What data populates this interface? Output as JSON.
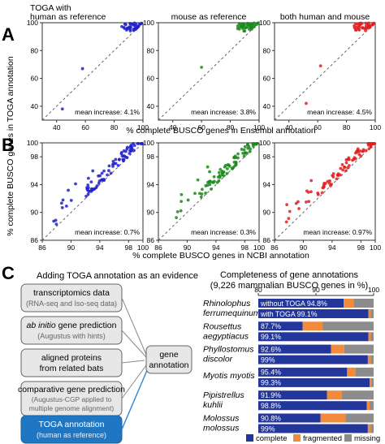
{
  "colors": {
    "blue": "#2020cc",
    "green": "#1a8a1a",
    "red": "#e02020",
    "bar_complete": "#23379b",
    "bar_fragmented": "#f28a3c",
    "bar_missing": "#8c8c8c",
    "toga_box": "#1f77c4",
    "arrow": "#3b8ad9"
  },
  "panel_a": {
    "letter": "A",
    "xlabel": "% complete BUSCO genes in Ensembl annotation",
    "plots": [
      {
        "title_lines": [
          "TOGA with",
          "human as reference"
        ],
        "mean": "mean increase: 4.1%",
        "color": "blue"
      },
      {
        "title_lines": [
          "mouse as reference"
        ],
        "mean": "mean increase: 3.8%",
        "color": "green"
      },
      {
        "title_lines": [
          "both human and mouse"
        ],
        "mean": "mean increase: 4.5%",
        "color": "red"
      }
    ],
    "ticks_x": [
      "40",
      "60",
      "80",
      "100"
    ],
    "ticks_y": [
      "40",
      "60",
      "80",
      "100"
    ]
  },
  "panel_b": {
    "letter": "B",
    "xlabel": "% complete BUSCO genes in NCBI annotation",
    "plots": [
      {
        "mean": "mean increase: 0.7%",
        "color": "blue"
      },
      {
        "mean": "mean increase: 0.3%",
        "color": "green"
      },
      {
        "mean": "mean increase: 0.97%",
        "color": "red"
      }
    ],
    "ticks_x": [
      "86",
      "90",
      "94",
      "98",
      "100"
    ],
    "ticks_y": [
      "86",
      "90",
      "94",
      "98",
      "100"
    ]
  },
  "ylabel_shared": "% complete BUSCO genes in TOGA annotation",
  "panel_c": {
    "letter": "C",
    "left_title": "Adding TOGA annotation as an evidence",
    "boxes": [
      {
        "title": "transcriptomics data",
        "sub": "(RNA-seq and Iso-seq data)"
      },
      {
        "title_italic": "ab initio",
        "title": " gene prediction",
        "sub": "(Augustus with hints)"
      },
      {
        "title": "aligned proteins",
        "title2": "from related bats"
      },
      {
        "title": "comparative gene prediction",
        "sub": "(Augustus-CGP applied to",
        "sub2": "multiple genome alignment)"
      },
      {
        "title": "TOGA annotation",
        "sub": "(human as reference)"
      }
    ],
    "center_box": [
      "gene",
      "annotation"
    ],
    "right_title": [
      "Completeness of gene annotations",
      "(9,226 mammalian BUSCO genes in %)"
    ],
    "axis_ticks": [
      "80",
      "90",
      "100"
    ],
    "species": [
      {
        "name": [
          "Rhinolophus",
          "ferrumequinum"
        ],
        "bars": [
          {
            "label": "without TOGA 94.8%",
            "complete": 94.8,
            "fragmented": 1.7
          },
          {
            "label": "with TOGA 99.1%",
            "complete": 99.1,
            "fragmented": 0.4
          }
        ]
      },
      {
        "name": [
          "Rousettus",
          "aegyptiacus"
        ],
        "bars": [
          {
            "label": "87.7%",
            "complete": 87.7,
            "fragmented": 3.5
          },
          {
            "label": "99.1%",
            "complete": 99.1,
            "fragmented": 0.4
          }
        ]
      },
      {
        "name": [
          "Phyllostomus",
          "discolor"
        ],
        "bars": [
          {
            "label": "92.6%",
            "complete": 92.6,
            "fragmented": 2.3
          },
          {
            "label": "99%",
            "complete": 99.0,
            "fragmented": 0.5
          }
        ]
      },
      {
        "name": [
          "Myotis myotis"
        ],
        "bars": [
          {
            "label": "95.4%",
            "complete": 95.4,
            "fragmented": 1.5
          },
          {
            "label": "99.3%",
            "complete": 99.3,
            "fragmented": 0.3
          }
        ]
      },
      {
        "name": [
          "Pipistrellus",
          "kuhlii"
        ],
        "bars": [
          {
            "label": "91.9%",
            "complete": 91.9,
            "fragmented": 2.6
          },
          {
            "label": "98.8%",
            "complete": 98.8,
            "fragmented": 0.5
          }
        ]
      },
      {
        "name": [
          "Molossus",
          "molossus"
        ],
        "bars": [
          {
            "label": "90.8%",
            "complete": 90.8,
            "fragmented": 4.3
          },
          {
            "label": "99%",
            "complete": 99.0,
            "fragmented": 0.5
          }
        ]
      }
    ],
    "legend": [
      "complete",
      "fragmented",
      "missing"
    ]
  }
}
